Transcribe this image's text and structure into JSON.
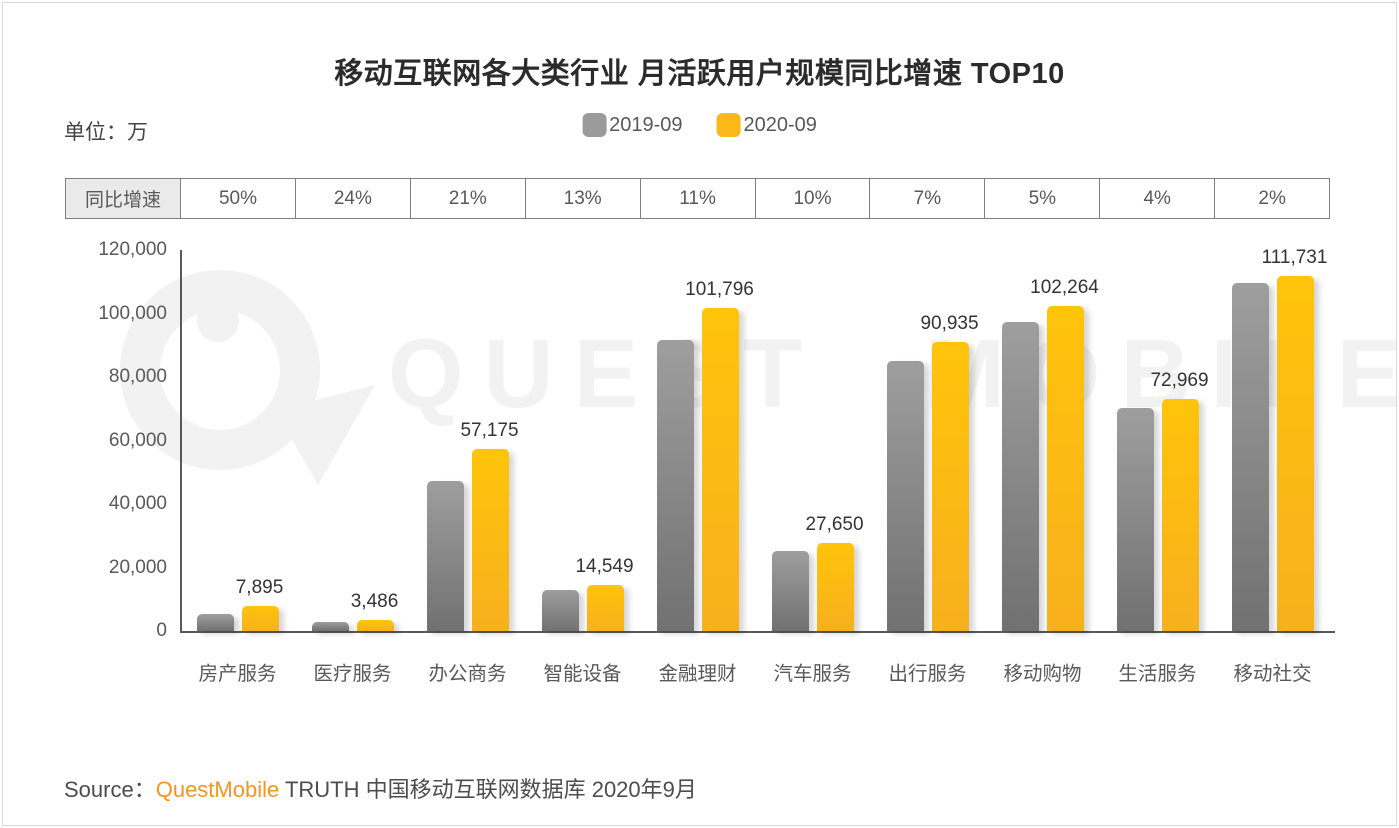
{
  "page": {
    "title": "移动互联网各大类行业 月活跃用户规模同比增速 TOP10",
    "unit_label": "单位：万",
    "watermark_text": "QUEST MOBILE",
    "source": {
      "prefix": "Source：",
      "brand": "QuestMobile",
      "suffix": " TRUTH 中国移动互联网数据库 2020年9月"
    }
  },
  "legend": [
    {
      "label": "2019-09",
      "color": "#9b9b9b"
    },
    {
      "label": "2020-09",
      "color": "#fbb817"
    }
  ],
  "growth_row": {
    "header": "同比增速",
    "values": [
      "50%",
      "24%",
      "21%",
      "13%",
      "11%",
      "10%",
      "7%",
      "5%",
      "4%",
      "2%"
    ]
  },
  "chart_data": {
    "type": "bar",
    "title": "移动互联网各大类行业 月活跃用户规模同比增速 TOP10",
    "unit": "万",
    "categories": [
      "房产服务",
      "医疗服务",
      "办公商务",
      "智能设备",
      "金融理财",
      "汽车服务",
      "出行服务",
      "移动购物",
      "生活服务",
      "移动社交"
    ],
    "growth_rates": [
      "50%",
      "24%",
      "21%",
      "13%",
      "11%",
      "10%",
      "7%",
      "5%",
      "4%",
      "2%"
    ],
    "series": [
      {
        "name": "2019-09",
        "color_top": "#9e9e9e",
        "color_bottom": "#717171",
        "labeled": false,
        "values": [
          5260,
          2810,
          47250,
          12870,
          91710,
          25140,
          84990,
          97390,
          70160,
          109540
        ]
      },
      {
        "name": "2020-09",
        "color_top": "#ffc40a",
        "color_bottom": "#f7b01e",
        "labeled": true,
        "values": [
          7895,
          3486,
          57175,
          14549,
          101796,
          27650,
          90935,
          102264,
          72969,
          111731
        ]
      }
    ],
    "ylim": [
      0,
      120000
    ],
    "ytick_step": 20000,
    "grid": false,
    "legend_position": "top-center"
  }
}
